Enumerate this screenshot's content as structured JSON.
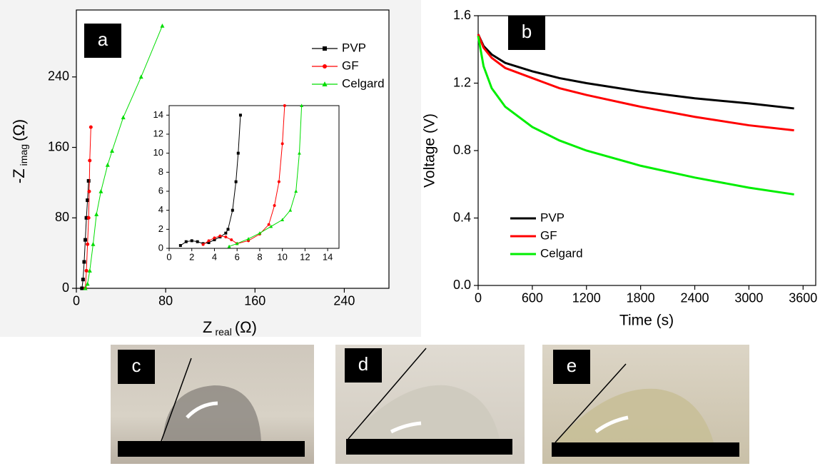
{
  "chart_data": [
    {
      "type": "line",
      "panel_label": "a",
      "xlabel": [
        "Z",
        "real",
        "(Ω)"
      ],
      "ylabel": [
        "-Z",
        "imag",
        "(Ω)"
      ],
      "xlim": [
        0,
        280
      ],
      "ylim": [
        0,
        316
      ],
      "xticks": [
        0,
        80,
        160,
        240
      ],
      "yticks": [
        0,
        80,
        160,
        240
      ],
      "legend": "upper right",
      "series": [
        {
          "name": "PVP",
          "color": "#000000",
          "marker": "square",
          "x": [
            5,
            6,
            7,
            8,
            9,
            10,
            11
          ],
          "values": [
            0,
            10,
            30,
            55,
            80,
            100,
            122
          ]
        },
        {
          "name": "GF",
          "color": "#ff0000",
          "marker": "circle",
          "x": [
            8,
            9,
            10,
            11,
            11.5,
            12,
            13
          ],
          "values": [
            0,
            20,
            50,
            80,
            110,
            145,
            183
          ]
        },
        {
          "name": "Celgard",
          "color": "#00dd00",
          "marker": "triangle",
          "x": [
            8,
            10,
            12,
            15,
            18,
            22,
            28,
            32,
            42,
            58,
            77
          ],
          "values": [
            0,
            5,
            20,
            50,
            84,
            110,
            140,
            156,
            194,
            240,
            298
          ]
        }
      ],
      "inset": {
        "xlim": [
          0,
          15
        ],
        "ylim": [
          0,
          15
        ],
        "xticks": [
          0,
          2,
          4,
          6,
          8,
          10,
          12,
          14
        ],
        "yticks": [
          0,
          2,
          4,
          6,
          8,
          10,
          12,
          14
        ],
        "series": [
          {
            "color": "#000000",
            "marker": "square",
            "x": [
              1,
              1.5,
              2,
              2.5,
              3,
              3.5,
              4,
              4.5,
              5,
              5.2,
              5.6,
              5.9,
              6.1,
              6.3
            ],
            "values": [
              0.3,
              0.7,
              0.8,
              0.7,
              0.5,
              0.6,
              0.9,
              1.2,
              1.6,
              2,
              4,
              7,
              10,
              14
            ]
          },
          {
            "color": "#ff0000",
            "marker": "circle",
            "x": [
              3,
              3.5,
              4,
              4.5,
              5,
              5.5,
              6,
              7,
              8,
              8.8,
              9.3,
              9.7,
              10,
              10.2
            ],
            "values": [
              0.4,
              0.8,
              1.1,
              1.3,
              1.2,
              0.9,
              0.5,
              0.8,
              1.5,
              2.5,
              4.5,
              7,
              11,
              15
            ]
          },
          {
            "color": "#00dd00",
            "marker": "triangle",
            "x": [
              5.3,
              6,
              7,
              8,
              9,
              10,
              10.7,
              11.2,
              11.5,
              11.7
            ],
            "values": [
              0.2,
              0.5,
              1,
              1.6,
              2.3,
              3,
              4,
              6,
              10,
              15
            ]
          }
        ]
      }
    },
    {
      "type": "line",
      "panel_label": "b",
      "xlabel": "Time (s)",
      "ylabel": "Voltage (V)",
      "xlim": [
        0,
        3740
      ],
      "ylim": [
        0,
        1.6
      ],
      "xticks": [
        0,
        600,
        1200,
        1800,
        2400,
        3000,
        3600
      ],
      "yticks": [
        {
          "value": 0,
          "label": "0.0"
        },
        0.4,
        0.8,
        1.2,
        1.6
      ],
      "legend": "lower left",
      "x": [
        0,
        60,
        150,
        300,
        600,
        900,
        1200,
        1800,
        2400,
        3000,
        3500
      ],
      "series": [
        {
          "name": "PVP",
          "color": "#000000",
          "values": [
            1.49,
            1.42,
            1.37,
            1.32,
            1.27,
            1.23,
            1.2,
            1.15,
            1.11,
            1.08,
            1.05
          ]
        },
        {
          "name": "GF",
          "color": "#ff0000",
          "values": [
            1.49,
            1.41,
            1.35,
            1.29,
            1.23,
            1.17,
            1.13,
            1.06,
            1.0,
            0.95,
            0.92
          ]
        },
        {
          "name": "Celgard",
          "color": "#00ee00",
          "values": [
            1.48,
            1.3,
            1.17,
            1.06,
            0.94,
            0.86,
            0.8,
            0.71,
            0.64,
            0.58,
            0.54
          ]
        }
      ]
    }
  ],
  "photos": [
    {
      "label": "c"
    },
    {
      "label": "d"
    },
    {
      "label": "e"
    }
  ]
}
